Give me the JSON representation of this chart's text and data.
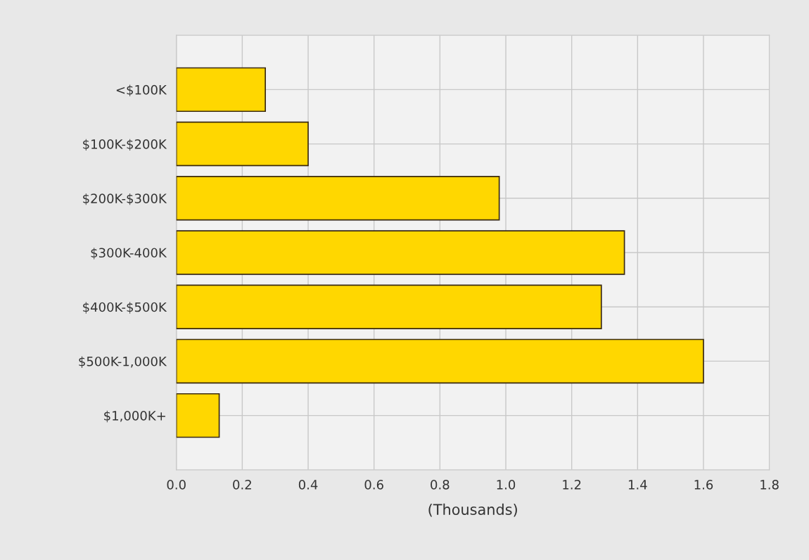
{
  "chart_data": {
    "type": "bar",
    "orientation": "horizontal",
    "xlabel": "(Thousands)",
    "categories": [
      "<$100K",
      "$100K-$200K",
      "$200K-$300K",
      "$300K-400K",
      "$400K-$500K",
      "$500K-1,000K",
      "$1,000K+"
    ],
    "values": [
      0.27,
      0.4,
      0.98,
      1.36,
      1.29,
      1.6,
      0.13
    ],
    "color": "#ffd700",
    "xlim": [
      0,
      1.8
    ],
    "xticks": [
      {
        "value": 0,
        "label": "0.0"
      },
      0.2,
      0.4,
      0.6,
      0.8,
      {
        "value": 1,
        "label": "1.0"
      },
      1.2,
      1.4,
      1.6,
      1.8
    ],
    "grid": true
  }
}
